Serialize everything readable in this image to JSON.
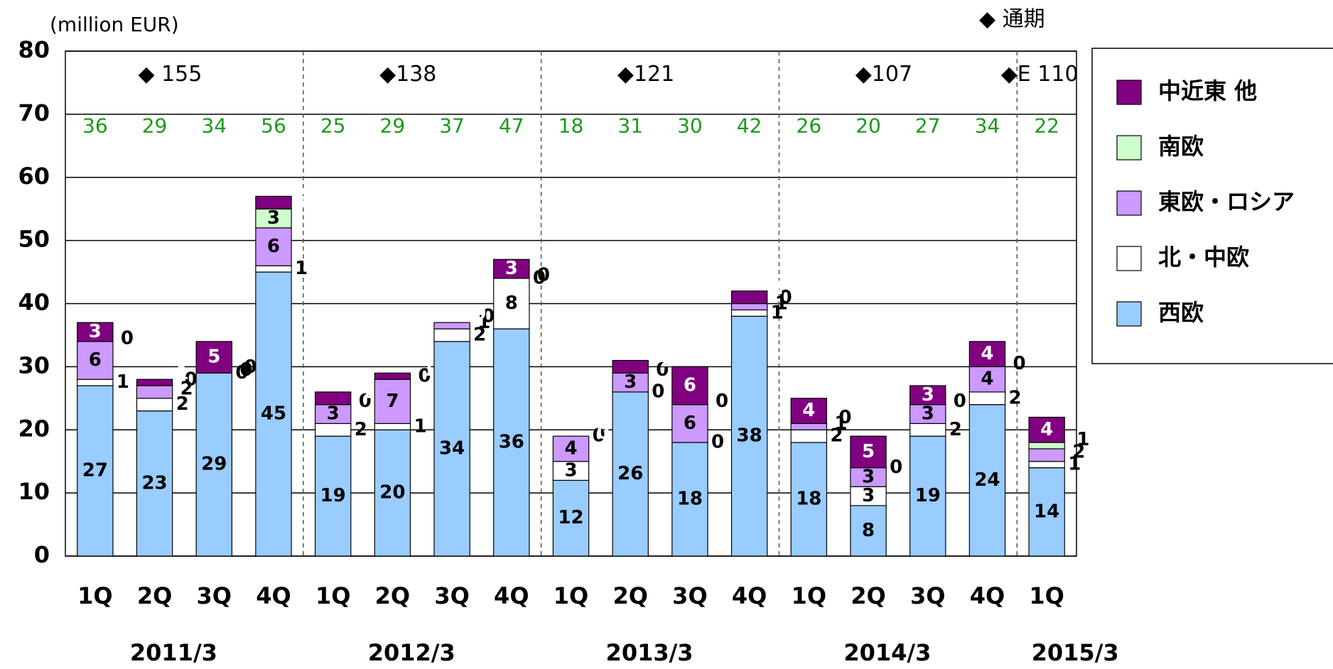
{
  "chart_data": {
    "type": "bar",
    "stacked": true,
    "y_label": "(million EUR)",
    "categories": [
      "1Q",
      "2Q",
      "3Q",
      "4Q",
      "1Q",
      "2Q",
      "3Q",
      "4Q",
      "1Q",
      "2Q",
      "3Q",
      "4Q",
      "1Q",
      "2Q",
      "3Q",
      "4Q",
      "1Q"
    ],
    "fiscal_years": [
      "2011/3",
      "2012/3",
      "2013/3",
      "2014/3",
      "2015/3"
    ],
    "quarter_totals": [
      36,
      29,
      34,
      56,
      25,
      29,
      37,
      47,
      18,
      31,
      30,
      42,
      26,
      20,
      27,
      34,
      22
    ],
    "annual_totals": [
      "◆ 155",
      "◆138",
      "◆121",
      "◆107",
      "◆E 110"
    ],
    "annual_legend": "◆ 通期",
    "series": [
      {
        "name": "西欧",
        "color": "#99ccff",
        "values": [
          27,
          23,
          29,
          45,
          19,
          20,
          34,
          36,
          12,
          26,
          18,
          38,
          18,
          8,
          19,
          24,
          14
        ]
      },
      {
        "name": "北・中欧",
        "color": "#ffffff",
        "values": [
          1,
          2,
          0,
          1,
          2,
          1,
          2,
          8,
          3,
          0,
          0,
          1,
          2,
          3,
          2,
          2,
          1
        ]
      },
      {
        "name": "東欧・ロシア",
        "color": "#cc99ff",
        "values": [
          6,
          2,
          0,
          6,
          3,
          7,
          1,
          0,
          4,
          3,
          6,
          1,
          1,
          3,
          3,
          4,
          2
        ]
      },
      {
        "name": "南欧",
        "color": "#ccffcc",
        "values": [
          0,
          0,
          0,
          3,
          0,
          0,
          0,
          0,
          0,
          0,
          0,
          0,
          0,
          0,
          0,
          0,
          1
        ]
      },
      {
        "name": "中近東 他",
        "color": "#800080",
        "values": [
          3,
          1,
          5,
          2,
          2,
          1,
          0,
          3,
          0,
          2,
          6,
          2,
          4,
          5,
          3,
          4,
          4
        ]
      }
    ],
    "ylim": [
      0,
      80
    ],
    "yticks": [
      0,
      10,
      20,
      30,
      40,
      50,
      60,
      70,
      80
    ],
    "grid": true,
    "legend": "right"
  }
}
